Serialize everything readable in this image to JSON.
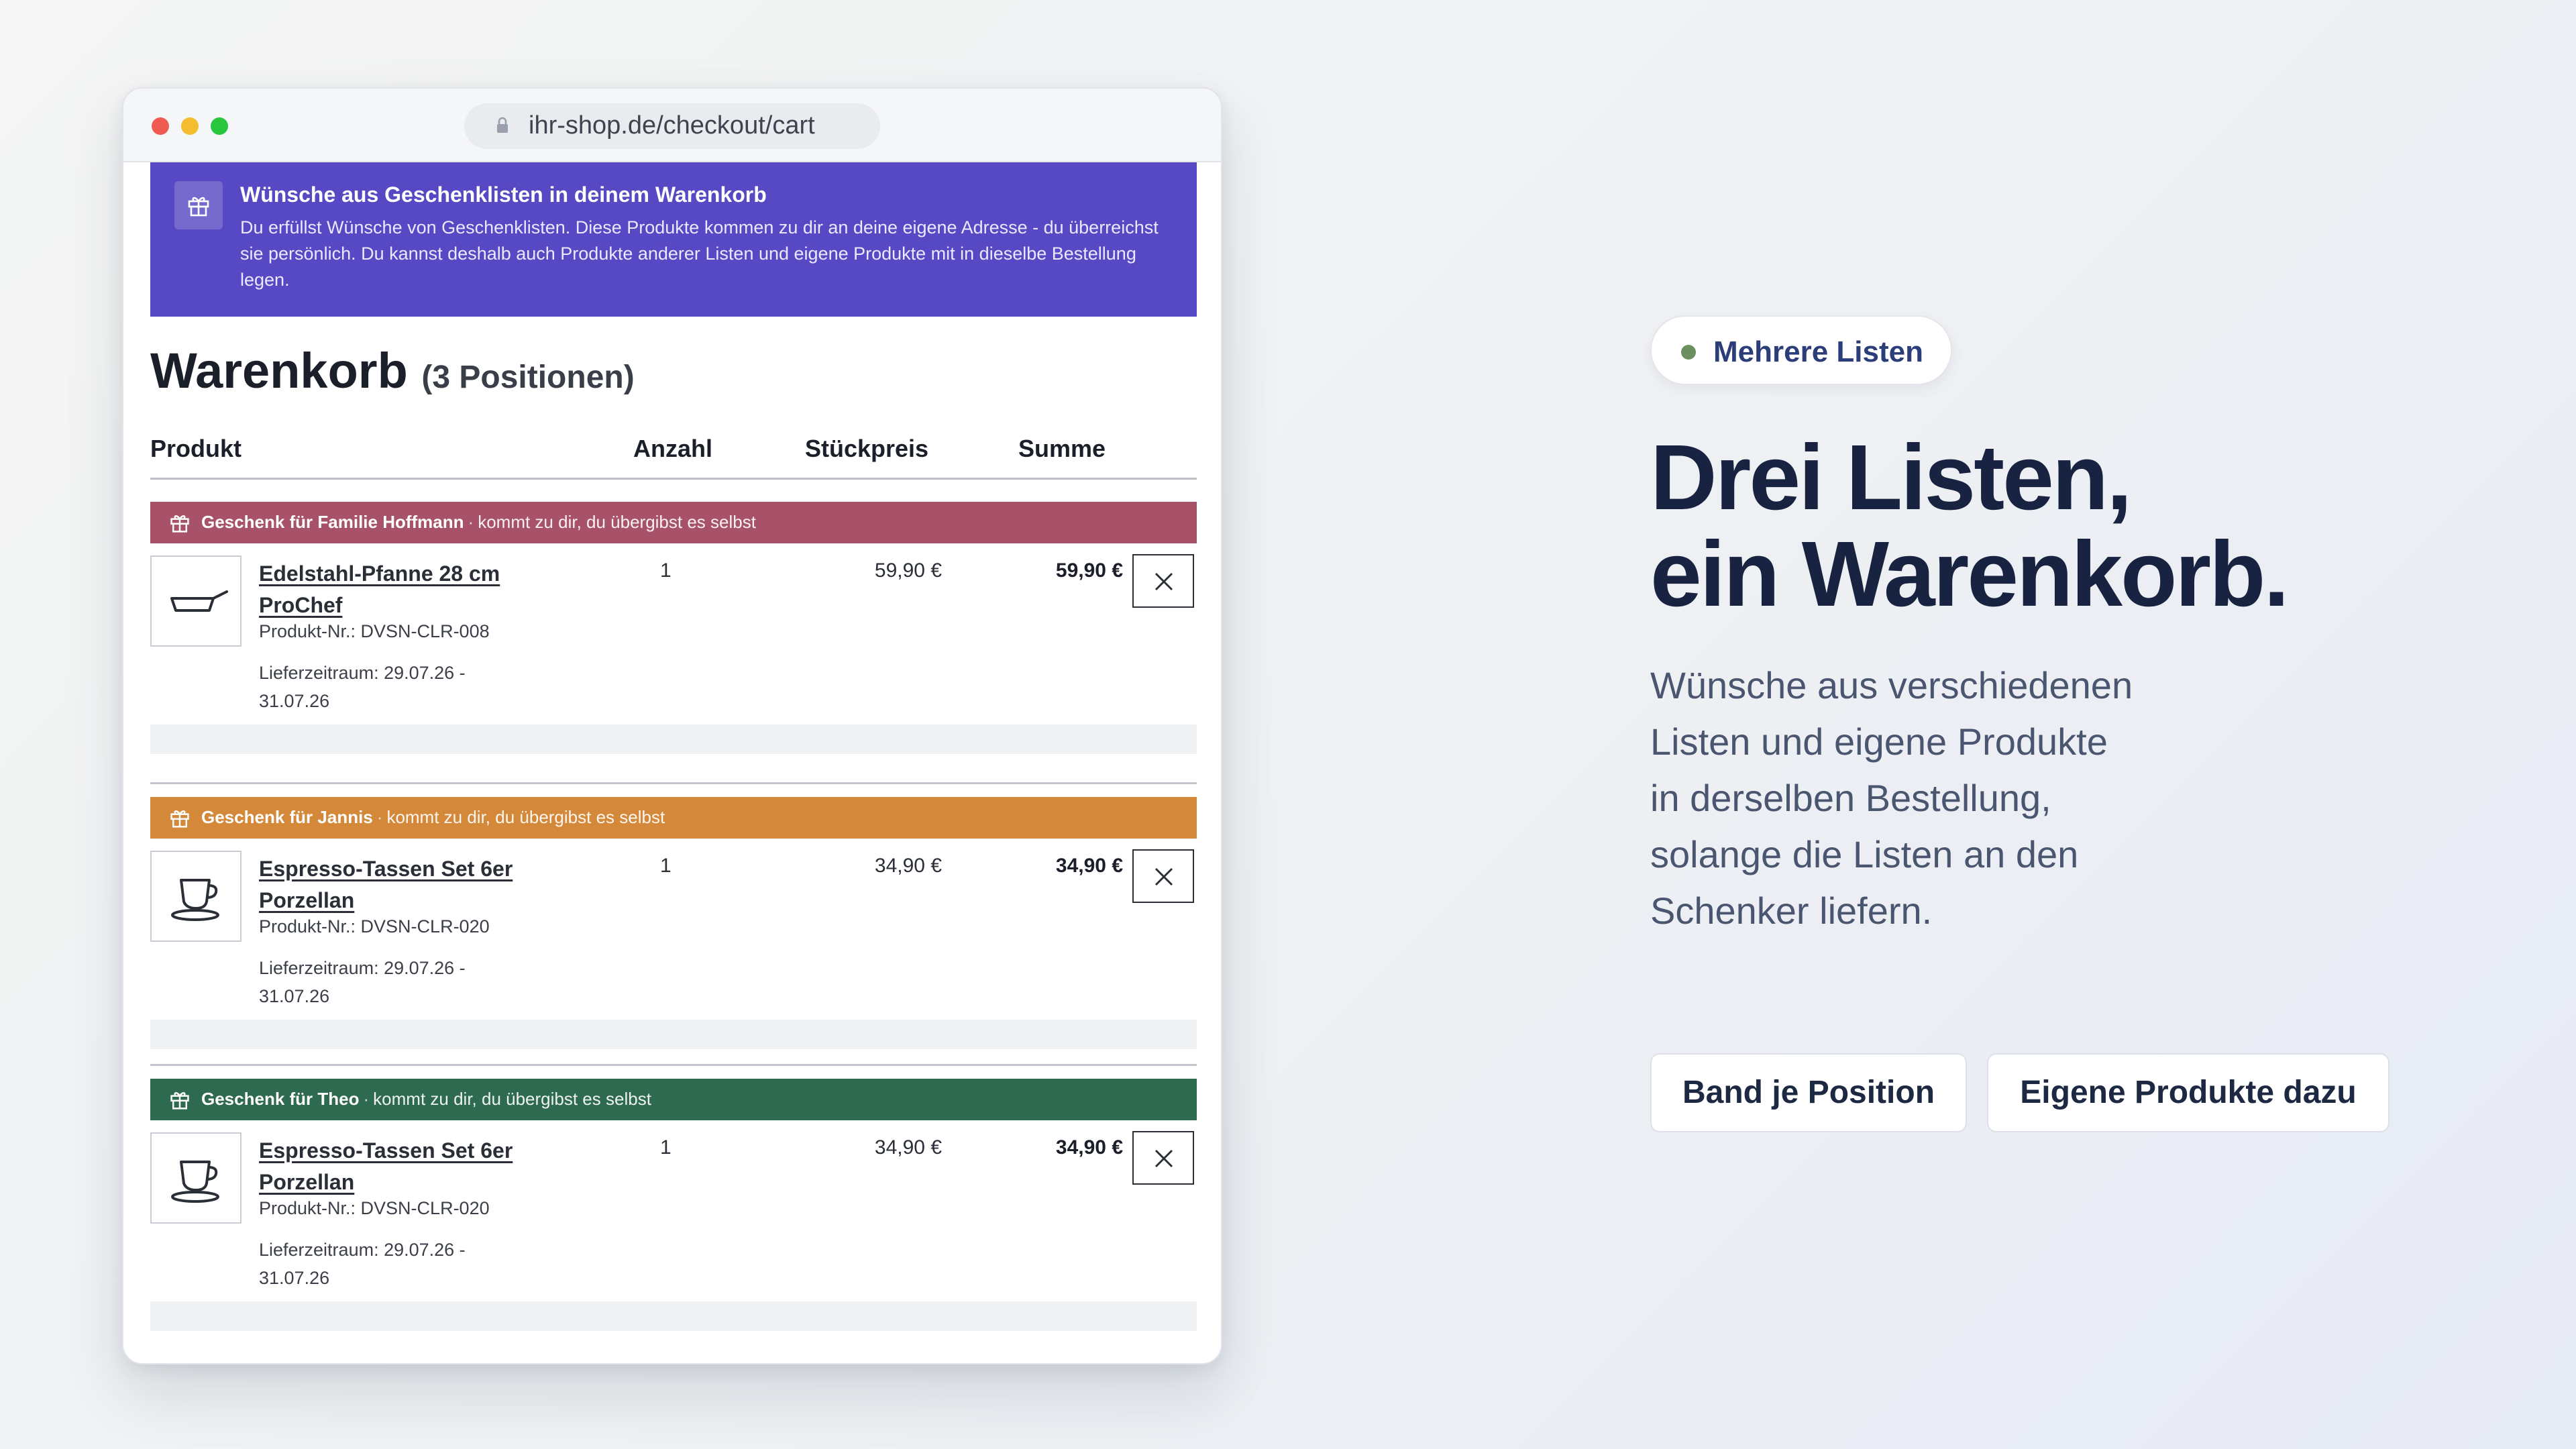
{
  "browser": {
    "url": "ihr-shop.de/checkout/cart"
  },
  "banner": {
    "icon": "gift-icon",
    "title": "Wünsche aus Geschenklisten in deinem Warenkorb",
    "text": "Du erfüllst Wünsche von Geschenklisten. Diese Produkte kommen zu dir an deine eigene Adresse - du überreichst sie persönlich. Du kannst deshalb auch Produkte anderer Listen und eigene Produkte mit in dieselbe Bestellung legen."
  },
  "cart": {
    "title": "Warenkorb",
    "count": "(3 Positionen)",
    "columns": {
      "product": "Produkt",
      "quantity": "Anzahl",
      "unit_price": "Stückpreis",
      "total": "Summe"
    },
    "items": [
      {
        "band_name": "Geschenk für Familie Hoffmann",
        "band_sep": "·",
        "band_note": "kommt zu dir, du übergibst es selbst",
        "band_color": "#a8526a",
        "name": "Edelstahl-Pfanne 28 cm ProChef",
        "sku": "Produkt-Nr.: DVSN-CLR-008",
        "delivery": "Lieferzeitraum: 29.07.26 - 31.07.26",
        "quantity": "1",
        "unit_price": "59,90 €",
        "total": "59,90 €",
        "icon": "pan-icon"
      },
      {
        "band_name": "Geschenk für Jannis",
        "band_sep": "·",
        "band_note": "kommt zu dir, du übergibst es selbst",
        "band_color": "#d4883a",
        "name": "Espresso-Tassen Set 6er Porzellan",
        "sku": "Produkt-Nr.: DVSN-CLR-020",
        "delivery": "Lieferzeitraum: 29.07.26 - 31.07.26",
        "quantity": "1",
        "unit_price": "34,90 €",
        "total": "34,90 €",
        "icon": "cup-icon"
      },
      {
        "band_name": "Geschenk für Theo",
        "band_sep": "·",
        "band_note": "kommt zu dir, du übergibst es selbst",
        "band_color": "#2e6a4f",
        "name": "Espresso-Tassen Set 6er Porzellan",
        "sku": "Produkt-Nr.: DVSN-CLR-020",
        "delivery": "Lieferzeitraum: 29.07.26 - 31.07.26",
        "quantity": "1",
        "unit_price": "34,90 €",
        "total": "34,90 €",
        "icon": "cup-icon"
      }
    ]
  },
  "hero": {
    "badge": "Mehrere Listen",
    "badge_color": "#6b8f5e",
    "title_line1": "Drei Listen,",
    "title_line2": "ein Warenkorb.",
    "text": "Wünsche aus verschiedenen Listen und eigene Produkte in derselben Bestellung, solange die Listen an den Schenker liefern.",
    "button1": "Band je Position",
    "button2": "Eigene Produkte dazu"
  }
}
